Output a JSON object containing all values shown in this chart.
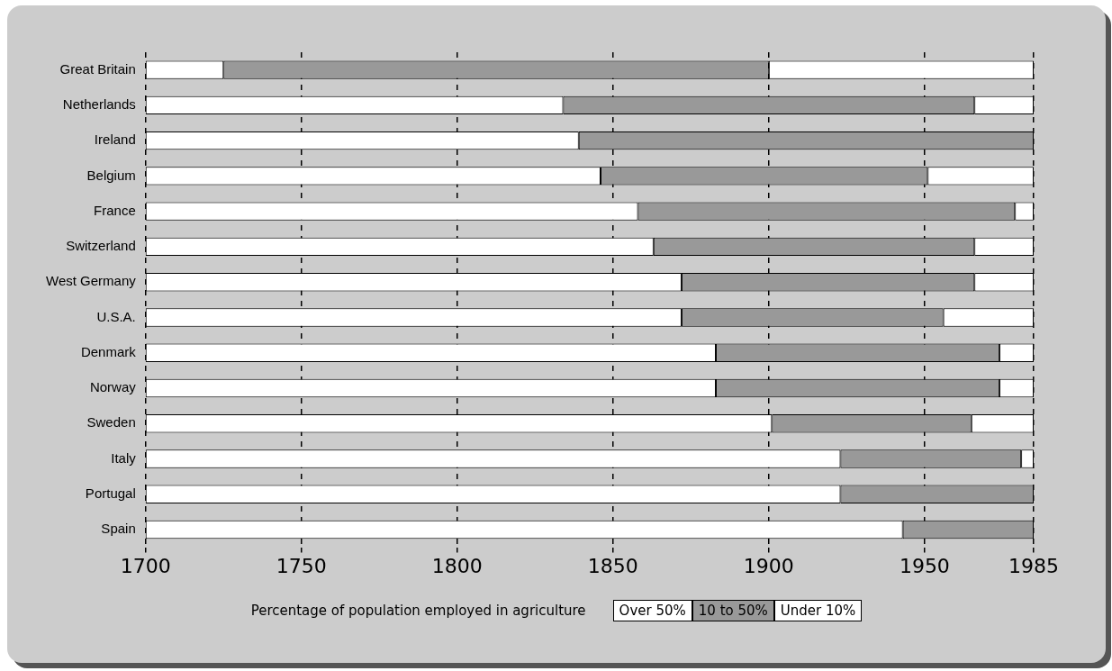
{
  "chart_data": {
    "type": "bar",
    "orientation": "horizontal",
    "categories": [
      "Great Britain",
      "Netherlands",
      "Ireland",
      "Belgium",
      "France",
      "Switzerland",
      "West Germany",
      "U.S.A.",
      "Denmark",
      "Norway",
      "Sweden",
      "Italy",
      "Portugal",
      "Spain"
    ],
    "series": [
      {
        "name": "Over 50%",
        "color": "#ffffff",
        "base": [
          1700,
          1700,
          1700,
          1700,
          1700,
          1700,
          1700,
          1700,
          1700,
          1700,
          1700,
          1700,
          1700,
          1700
        ],
        "values": [
          25,
          134,
          139,
          146,
          158,
          163,
          172,
          172,
          183,
          183,
          201,
          223,
          223,
          243
        ]
      },
      {
        "name": "10 to 50%",
        "color": "#999999",
        "base": [
          1725,
          1834,
          1839,
          1846,
          1858,
          1863,
          1872,
          1872,
          1883,
          1883,
          1901,
          1923,
          1923,
          1943
        ],
        "values": [
          175,
          132,
          146,
          105,
          121,
          103,
          94,
          84,
          91,
          91,
          64,
          58,
          62,
          42
        ]
      },
      {
        "name": "Under 10%",
        "color": "#ffffff",
        "base": [
          1900,
          1966,
          null,
          1951,
          1979,
          1966,
          1966,
          1956,
          1974,
          1974,
          1965,
          1981,
          null,
          null
        ],
        "values": [
          85,
          19,
          null,
          34,
          6,
          19,
          19,
          29,
          11,
          11,
          20,
          4,
          null,
          null
        ]
      }
    ],
    "xlim": [
      1700,
      1985
    ],
    "xticks": [
      1700,
      1750,
      1800,
      1850,
      1900,
      1950,
      1985
    ],
    "grid": "x",
    "legend": "bottom",
    "legend_title": "Percentage of population employed in agriculture"
  }
}
